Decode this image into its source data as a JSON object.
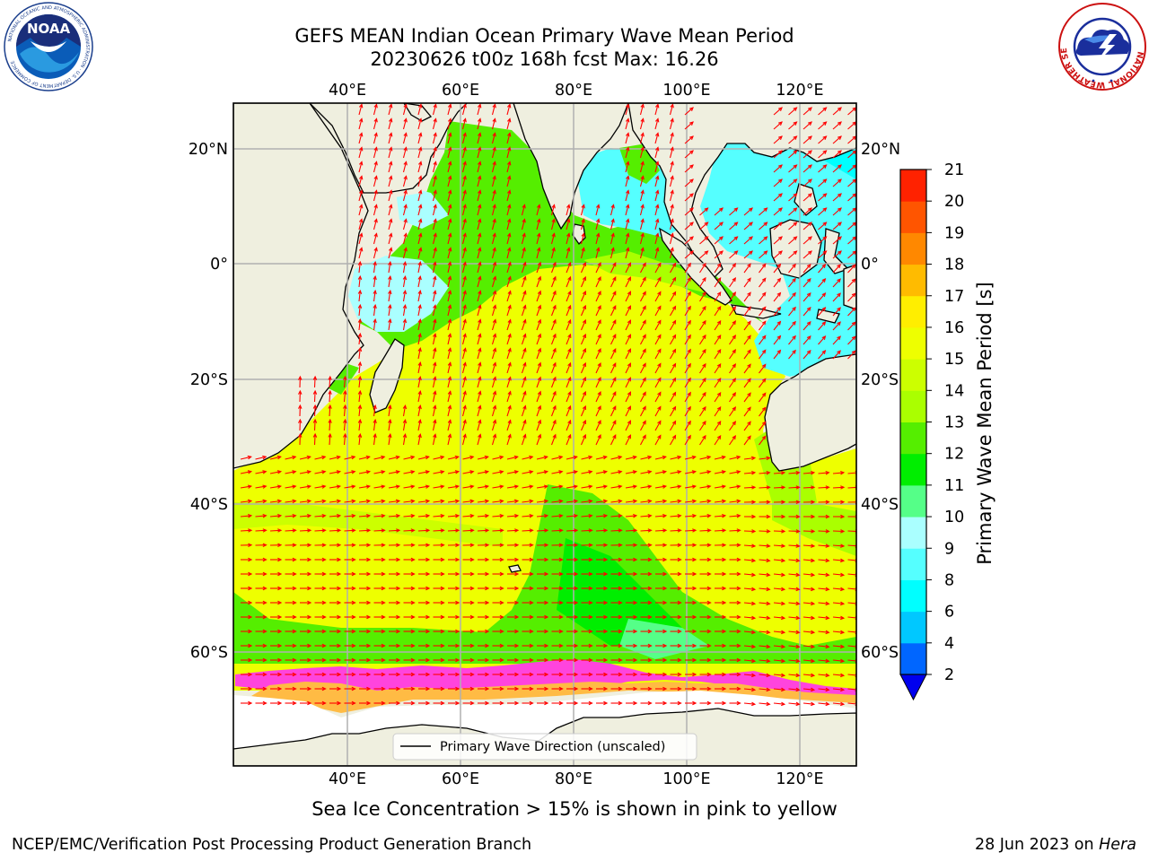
{
  "header": {
    "title_line1": "GEFS MEAN Indian Ocean Primary Wave Mean Period",
    "title_line2": "20230626 t00z 168h fcst   Max: 16.26"
  },
  "logos": {
    "left": {
      "name": "NOAA",
      "text": "NOAA",
      "ring_text": "NATIONAL OCEANIC AND ATMOSPHERIC ADMINISTRATION · U.S. DEPARTMENT OF COMMERCE"
    },
    "right": {
      "name": "National Weather Service",
      "ring_text": "NATIONAL WEATHER SERVICE"
    }
  },
  "map": {
    "lon_ticks_top": [
      "40°E",
      "60°E",
      "80°E",
      "100°E",
      "120°E"
    ],
    "lon_ticks_bottom": [
      "40°E",
      "60°E",
      "80°E",
      "100°E",
      "120°E"
    ],
    "lat_ticks_left": [
      "20°N",
      "0°",
      "20°S",
      "40°S",
      "60°S"
    ],
    "lat_ticks_right": [
      "20°N",
      "0°",
      "20°S",
      "40°S",
      "60°S"
    ],
    "lon_range": [
      20,
      130
    ],
    "lat_range": [
      -70,
      28
    ],
    "legend_label": "Primary Wave Direction (unscaled)",
    "arrow_color": "#ff0000",
    "land_color": "#efefdf"
  },
  "colorbar": {
    "label": "Primary Wave Mean Period [s]",
    "tick_labels": [
      "2",
      "4",
      "6",
      "8",
      "9",
      "10",
      "11",
      "12",
      "13",
      "14",
      "15",
      "16",
      "17",
      "18",
      "19",
      "20",
      "21"
    ],
    "colors": [
      "#0066ff",
      "#00c8ff",
      "#00ffff",
      "#55ffff",
      "#aaffff",
      "#55ff88",
      "#00ee00",
      "#55ee00",
      "#aaff00",
      "#ccff00",
      "#eeff00",
      "#ffee00",
      "#ffbb00",
      "#ff8800",
      "#ff5500",
      "#ff2200"
    ],
    "extend_color": "#0000ee"
  },
  "caption": "Sea Ice Concentration > 15% is shown in pink to yellow",
  "footer": {
    "left": "NCEP/EMC/Verification Post Processing Product Generation Branch",
    "right_prefix": "28 Jun 2023 on ",
    "right_host": "Hera"
  }
}
